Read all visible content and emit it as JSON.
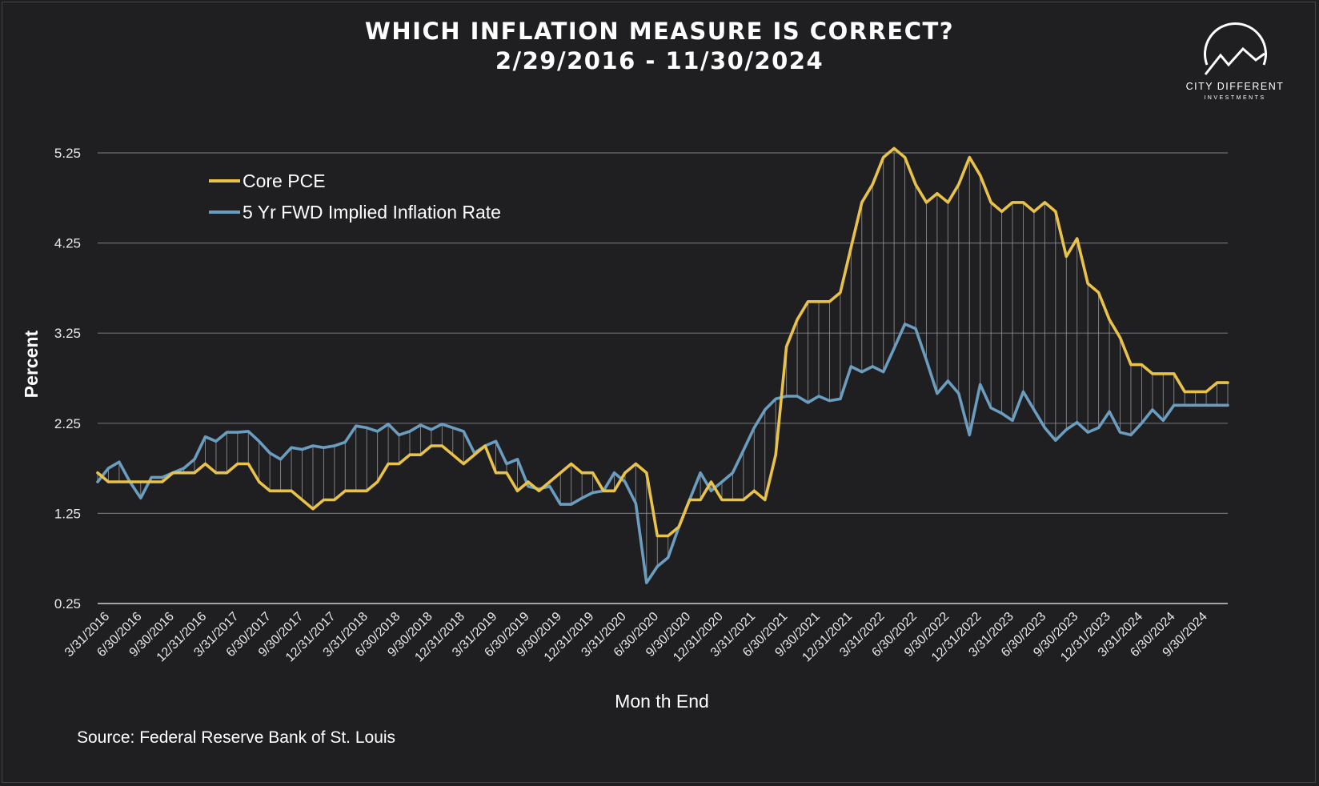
{
  "logo": {
    "line1": "CITY DIFFERENT",
    "line2": "INVESTMENTS"
  },
  "chart_data": {
    "type": "line",
    "title": "WHICH INFLATION MEASURE IS CORRECT?",
    "subtitle": "2/29/2016 - 11/30/2024",
    "xlabel": "Mon th End",
    "ylabel": "Percent",
    "source": "Source: Federal Reserve Bank of St. Louis",
    "ylim": [
      0.25,
      5.25
    ],
    "yticks": [
      "5.25",
      "4.25",
      "3.25",
      "2.25",
      "1.25",
      "0.25"
    ],
    "xtick_labels": [
      "3/31/2016",
      "6/30/2016",
      "9/30/2016",
      "12/31/2016",
      "3/31/2017",
      "6/30/2017",
      "9/30/2017",
      "12/31/2017",
      "3/31/2018",
      "6/30/2018",
      "9/30/2018",
      "12/31/2018",
      "3/31/2019",
      "6/30/2019",
      "9/30/2019",
      "12/31/2019",
      "3/31/2020",
      "6/30/2020",
      "9/30/2020",
      "12/31/2020",
      "3/31/2021",
      "6/30/2021",
      "9/30/2021",
      "12/31/2021",
      "3/31/2022",
      "6/30/2022",
      "9/30/2022",
      "12/31/2022",
      "3/31/2023",
      "6/30/2023",
      "9/30/2023",
      "12/31/2023",
      "3/31/2024",
      "6/30/2024",
      "9/30/2024"
    ],
    "grid": true,
    "legend_position": "top-left",
    "series": [
      {
        "name": "Core PCE",
        "color": "#e9c349",
        "values": [
          1.7,
          1.6,
          1.6,
          1.6,
          1.6,
          1.6,
          1.6,
          1.7,
          1.7,
          1.7,
          1.8,
          1.7,
          1.7,
          1.8,
          1.8,
          1.6,
          1.5,
          1.5,
          1.5,
          1.4,
          1.3,
          1.4,
          1.4,
          1.5,
          1.5,
          1.5,
          1.6,
          1.8,
          1.8,
          1.9,
          1.9,
          2.0,
          2.0,
          1.9,
          1.8,
          1.9,
          2.0,
          1.7,
          1.7,
          1.5,
          1.6,
          1.5,
          1.6,
          1.7,
          1.8,
          1.7,
          1.7,
          1.5,
          1.5,
          1.7,
          1.8,
          1.7,
          1.0,
          1.0,
          1.1,
          1.4,
          1.4,
          1.6,
          1.4,
          1.4,
          1.4,
          1.5,
          1.4,
          1.9,
          3.1,
          3.4,
          3.6,
          3.6,
          3.6,
          3.7,
          4.2,
          4.7,
          4.9,
          5.2,
          5.3,
          5.2,
          4.9,
          4.7,
          4.8,
          4.7,
          4.9,
          5.2,
          5.0,
          4.7,
          4.6,
          4.7,
          4.7,
          4.6,
          4.7,
          4.6,
          4.1,
          4.3,
          3.8,
          3.7,
          3.4,
          3.2,
          2.9,
          2.9,
          2.8,
          2.8,
          2.8,
          2.6,
          2.6,
          2.6,
          2.7,
          2.7
        ]
      },
      {
        "name": "5 Yr FWD Implied Inflation Rate",
        "color": "#6b9dbf",
        "values": [
          1.6,
          1.75,
          1.82,
          1.6,
          1.42,
          1.65,
          1.65,
          1.7,
          1.75,
          1.85,
          2.1,
          2.05,
          2.15,
          2.15,
          2.16,
          2.05,
          1.92,
          1.85,
          1.98,
          1.96,
          2.0,
          1.98,
          2.0,
          2.04,
          2.22,
          2.2,
          2.16,
          2.24,
          2.12,
          2.16,
          2.23,
          2.18,
          2.24,
          2.2,
          2.16,
          1.92,
          2.0,
          2.05,
          1.8,
          1.85,
          1.55,
          1.52,
          1.55,
          1.35,
          1.35,
          1.42,
          1.48,
          1.5,
          1.7,
          1.6,
          1.36,
          0.48,
          0.66,
          0.76,
          1.1,
          1.4,
          1.7,
          1.5,
          1.6,
          1.7,
          1.95,
          2.2,
          2.4,
          2.52,
          2.55,
          2.55,
          2.48,
          2.55,
          2.5,
          2.52,
          2.88,
          2.82,
          2.88,
          2.82,
          3.08,
          3.35,
          3.3,
          2.95,
          2.58,
          2.72,
          2.58,
          2.12,
          2.68,
          2.42,
          2.36,
          2.28,
          2.6,
          2.4,
          2.2,
          2.06,
          2.18,
          2.26,
          2.15,
          2.2,
          2.38,
          2.15,
          2.12,
          2.25,
          2.4,
          2.28,
          2.45,
          2.45,
          2.45,
          2.45,
          2.45,
          2.45
        ]
      }
    ]
  }
}
